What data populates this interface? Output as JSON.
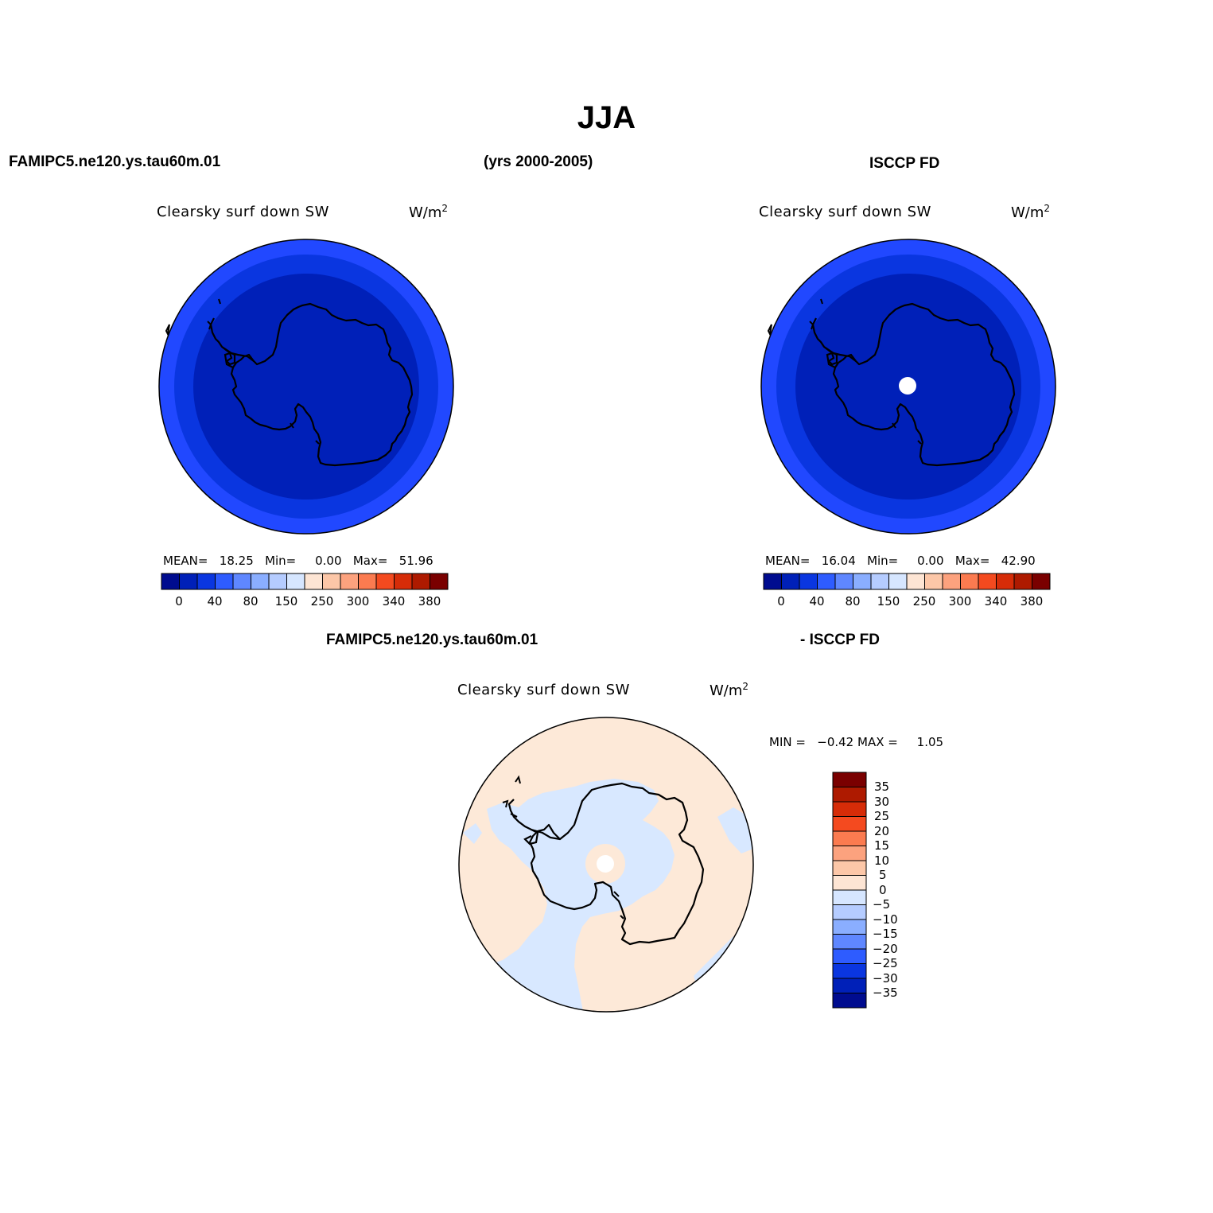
{
  "main_title": "JJA",
  "header": {
    "model_case": "FAMIPC5.ne120.ys.tau60m.01",
    "years": "(yrs 2000-2005)",
    "obs_name": "ISCCP FD",
    "diff_left": "FAMIPC5.ne120.ys.tau60m.01",
    "diff_right": "- ISCCP FD"
  },
  "panels": [
    {
      "id": "model",
      "title": "Clearsky surf down SW",
      "units_base": "W/m",
      "units_sup": "2",
      "mean_label": "MEAN=",
      "mean_value": "18.25",
      "min_label": "Min=",
      "min_value": "0.00",
      "max_label": "Max=",
      "max_value": "51.96"
    },
    {
      "id": "obs",
      "title": "Clearsky surf down SW",
      "units_base": "W/m",
      "units_sup": "2",
      "mean_label": "MEAN=",
      "mean_value": "16.04",
      "min_label": "Min=",
      "min_value": "0.00",
      "max_label": "Max=",
      "max_value": "42.90"
    },
    {
      "id": "diff",
      "title": "Clearsky surf down SW",
      "units_base": "W/m",
      "units_sup": "2",
      "min_label": "MIN =",
      "min_value": "−0.42",
      "max_label": "MAX =",
      "max_value": "1.05"
    }
  ],
  "colorbar_horizontal": {
    "colors": [
      "#000c8f",
      "#0020b8",
      "#0a36e0",
      "#2e5cff",
      "#5f87ff",
      "#8aaeff",
      "#b5ccff",
      "#d6e6ff",
      "#fde5d4",
      "#fcc7a8",
      "#fca27e",
      "#fb7b50",
      "#f44a1f",
      "#d62c08",
      "#ae1a00",
      "#7a0000"
    ],
    "tick_labels": [
      "0",
      "40",
      "80",
      "150",
      "250",
      "300",
      "340",
      "380"
    ]
  },
  "colorbar_vertical": {
    "colors": [
      "#7a0000",
      "#ae1a00",
      "#d62c08",
      "#f44a1f",
      "#fb7b50",
      "#fca27e",
      "#fcc7a8",
      "#fde5d4",
      "#d6e6ff",
      "#b5ccff",
      "#8aaeff",
      "#5f87ff",
      "#2e5cff",
      "#0a36e0",
      "#0020b8",
      "#000c8f"
    ],
    "tick_labels": [
      "35",
      "30",
      "25",
      "20",
      "15",
      "10",
      "5",
      "0",
      "−5",
      "−10",
      "−15",
      "−20",
      "−25",
      "−30",
      "−35"
    ]
  },
  "map_colors": {
    "ring_outer": "#2148ff",
    "ring_mid": "#0a36e0",
    "ring_inner": "#0020b8",
    "diff_positive": "#fde9d8",
    "diff_negative": "#d8e8ff",
    "pole_missing": "#ffffff"
  }
}
